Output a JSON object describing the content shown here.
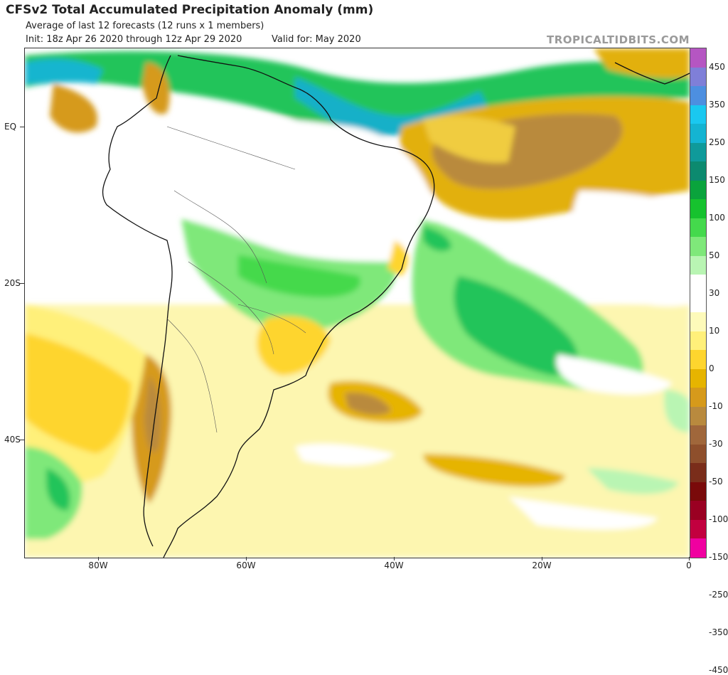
{
  "header": {
    "title": "CFSv2 Total Accumulated Precipitation Anomaly (mm)",
    "subtitle1": "Average of last 12 forecasts (12 runs x 1 members)",
    "subtitle2": "Init: 18z Apr 26 2020 through 12z Apr 29 2020",
    "valid": "Valid for: May 2020",
    "brand": "TROPICALTIDBITS.COM"
  },
  "axes": {
    "lat_labels": [
      "EQ",
      "20S",
      "40S"
    ],
    "lon_labels": [
      "80W",
      "60W",
      "40W",
      "20W",
      "0"
    ]
  },
  "colorbar": {
    "labels": [
      "450",
      "350",
      "250",
      "150",
      "100",
      "50",
      "30",
      "10",
      "0",
      "-10",
      "-30",
      "-50",
      "-100",
      "-150",
      "-250",
      "-350",
      "-450"
    ],
    "colors": [
      "#b556c2",
      "#7f7fd8",
      "#4d8fe0",
      "#1ac8f0",
      "#14b4d2",
      "#0f9a9a",
      "#0c8a6f",
      "#0aa33c",
      "#16c22e",
      "#44d94c",
      "#7fe87a",
      "#b9f5b3",
      "#ffffff",
      "#ffffff",
      "#fdfaba",
      "#fff07a",
      "#fed52e",
      "#e6b400",
      "#d69a1b",
      "#b98a3e",
      "#a0673b",
      "#8e4f2c",
      "#7a2d1a",
      "#7a0a0a",
      "#9a0022",
      "#c2003f",
      "#f000a0"
    ]
  }
}
